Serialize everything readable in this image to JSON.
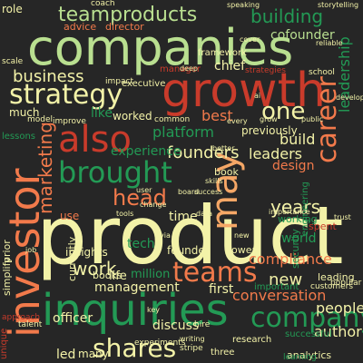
{
  "colors": {
    "background": "#262626",
    "light_green": "#b9df90",
    "pale_yellow": "#f3f2a8",
    "orange": "#f27a4b",
    "red": "#c93b2b",
    "green": "#239a55",
    "light_orange": "#f5a766",
    "gray": "#8c8c8c"
  },
  "words": [
    {
      "text": "product",
      "color": "pale_yellow",
      "vertical": false
    },
    {
      "text": "companies",
      "color": "light_green",
      "vertical": false
    },
    {
      "text": "growth",
      "color": "red",
      "vertical": false
    },
    {
      "text": "inquiries",
      "color": "green",
      "vertical": false
    },
    {
      "text": "investor",
      "color": "orange",
      "vertical": true
    },
    {
      "text": "teamproducts",
      "color": "light_green",
      "vertical": false
    },
    {
      "text": "also",
      "color": "red",
      "vertical": false
    },
    {
      "text": "may",
      "color": "light_orange",
      "vertical": true
    },
    {
      "text": "brought",
      "color": "green",
      "vertical": false
    },
    {
      "text": "strategy",
      "color": "pale_yellow",
      "vertical": false
    },
    {
      "text": "teams",
      "color": "orange",
      "vertical": false
    },
    {
      "text": "company",
      "color": "green",
      "vertical": false
    },
    {
      "text": "career",
      "color": "orange",
      "vertical": true
    },
    {
      "text": "shares",
      "color": "pale_yellow",
      "vertical": false
    },
    {
      "text": "head",
      "color": "orange",
      "vertical": false
    },
    {
      "text": "one",
      "color": "pale_yellow",
      "vertical": false
    },
    {
      "text": "building",
      "color": "green",
      "vertical": false
    },
    {
      "text": "business",
      "color": "pale_yellow",
      "vertical": false
    },
    {
      "text": "years",
      "color": "pale_yellow",
      "vertical": false
    },
    {
      "text": "work",
      "color": "pale_yellow",
      "vertical": false
    },
    {
      "text": "new",
      "color": "pale_yellow",
      "vertical": false
    },
    {
      "text": "marketing",
      "color": "orange",
      "vertical": true
    },
    {
      "text": "founders",
      "color": "pale_yellow",
      "vertical": false
    },
    {
      "text": "compliance",
      "color": "orange",
      "vertical": false
    },
    {
      "text": "conversation",
      "color": "orange",
      "vertical": false
    },
    {
      "text": "leaders",
      "color": "pale_yellow",
      "vertical": false
    },
    {
      "text": "management",
      "color": "pale_yellow",
      "vertical": false
    },
    {
      "text": "people",
      "color": "pale_yellow",
      "vertical": false
    },
    {
      "text": "leadership",
      "color": "green",
      "vertical": true
    },
    {
      "text": "author",
      "color": "pale_yellow",
      "vertical": false
    },
    {
      "text": "design",
      "color": "orange",
      "vertical": false
    },
    {
      "text": "build",
      "color": "pale_yellow",
      "vertical": false
    },
    {
      "text": "cofounder",
      "color": "light_green",
      "vertical": false
    },
    {
      "text": "platform",
      "color": "green",
      "vertical": false
    },
    {
      "text": "experience",
      "color": "green",
      "vertical": false
    },
    {
      "text": "best",
      "color": "orange",
      "vertical": false
    },
    {
      "text": "chief",
      "color": "pale_yellow",
      "vertical": false
    },
    {
      "text": "officer",
      "color": "pale_yellow",
      "vertical": false
    },
    {
      "text": "discuss",
      "color": "pale_yellow",
      "vertical": false
    },
    {
      "text": "time",
      "color": "pale_yellow",
      "vertical": false
    },
    {
      "text": "like",
      "color": "green",
      "vertical": false
    },
    {
      "text": "tech",
      "color": "green",
      "vertical": false
    },
    {
      "text": "insights",
      "color": "pale_yellow",
      "vertical": false
    },
    {
      "text": "first",
      "color": "pale_yellow",
      "vertical": false
    },
    {
      "text": "founder",
      "color": "pale_yellow",
      "vertical": false
    },
    {
      "text": "much",
      "color": "pale_yellow",
      "vertical": false
    },
    {
      "text": "previously",
      "color": "pale_yellow",
      "vertical": false
    },
    {
      "text": "working",
      "color": "green",
      "vertical": false
    },
    {
      "text": "led",
      "color": "pale_yellow",
      "vertical": false
    },
    {
      "text": "worked",
      "color": "pale_yellow",
      "vertical": false
    },
    {
      "text": "life",
      "color": "pale_yellow",
      "vertical": false
    },
    {
      "text": "million",
      "color": "green",
      "vertical": false
    },
    {
      "text": "use",
      "color": "orange",
      "vertical": false
    },
    {
      "text": "many",
      "color": "pale_yellow",
      "vertical": false
    },
    {
      "text": "book",
      "color": "pale_yellow",
      "vertical": false
    },
    {
      "text": "books",
      "color": "pale_yellow",
      "vertical": false
    },
    {
      "text": "power",
      "color": "pale_yellow",
      "vertical": false
    },
    {
      "text": "manager",
      "color": "red",
      "vertical": false
    },
    {
      "text": "leading",
      "color": "pale_yellow",
      "vertical": false
    },
    {
      "text": "currently",
      "color": "pale_yellow",
      "vertical": true
    },
    {
      "text": "important",
      "color": "green",
      "vertical": false
    },
    {
      "text": "security",
      "color": "green",
      "vertical": true
    },
    {
      "text": "engineering",
      "color": "green",
      "vertical": true
    },
    {
      "text": "executive",
      "color": "pale_yellow",
      "vertical": false
    },
    {
      "text": "advice",
      "color": "orange",
      "vertical": false
    },
    {
      "text": "director",
      "color": "orange",
      "vertical": false
    },
    {
      "text": "framework",
      "color": "pale_yellow",
      "vertical": false
    },
    {
      "text": "world",
      "color": "green",
      "vertical": false
    },
    {
      "text": "simplify",
      "color": "pale_yellow",
      "vertical": true
    },
    {
      "text": "prior",
      "color": "pale_yellow",
      "vertical": true
    },
    {
      "text": "analytics",
      "color": "pale_yellow",
      "vertical": false
    },
    {
      "text": "three",
      "color": "pale_yellow",
      "vertical": false
    },
    {
      "text": "research",
      "color": "pale_yellow",
      "vertical": false
    },
    {
      "text": "successful",
      "color": "green",
      "vertical": false
    },
    {
      "text": "customers",
      "color": "pale_yellow",
      "vertical": false
    },
    {
      "text": "stripe",
      "color": "pale_yellow",
      "vertical": false
    },
    {
      "text": "spent",
      "color": "red",
      "vertical": false
    },
    {
      "text": "strategies",
      "color": "red",
      "vertical": false
    },
    {
      "text": "common",
      "color": "pale_yellow",
      "vertical": false
    },
    {
      "text": "popular",
      "color": "pale_yellow",
      "vertical": false
    },
    {
      "text": "importance",
      "color": "pale_yellow",
      "vertical": false
    },
    {
      "text": "experiments",
      "color": "pale_yellow",
      "vertical": false
    },
    {
      "text": "learning",
      "color": "green",
      "vertical": false
    },
    {
      "text": "role",
      "color": "pale_yellow",
      "vertical": false
    },
    {
      "text": "coach",
      "color": "pale_yellow",
      "vertical": false
    },
    {
      "text": "scale",
      "color": "pale_yellow",
      "vertical": false
    },
    {
      "text": "model",
      "color": "pale_yellow",
      "vertical": false
    },
    {
      "text": "improve",
      "color": "pale_yellow",
      "vertical": false
    },
    {
      "text": "impact",
      "color": "pale_yellow",
      "vertical": false
    },
    {
      "text": "school",
      "color": "pale_yellow",
      "vertical": false
    },
    {
      "text": "lessons",
      "color": "green",
      "vertical": false
    },
    {
      "text": "unique",
      "color": "red",
      "vertical": true
    },
    {
      "text": "approach",
      "color": "red",
      "vertical": false
    },
    {
      "text": "talent",
      "color": "pale_yellow",
      "vertical": false
    },
    {
      "text": "storytelling",
      "color": "pale_yellow",
      "vertical": false
    },
    {
      "text": "speaking",
      "color": "pale_yellow",
      "vertical": false
    },
    {
      "text": "reliable",
      "color": "pale_yellow",
      "vertical": false
    },
    {
      "text": "develop",
      "color": "pale_yellow",
      "vertical": false
    },
    {
      "text": "public",
      "color": "pale_yellow",
      "vertical": false
    },
    {
      "text": "trust",
      "color": "pale_yellow",
      "vertical": false
    },
    {
      "text": "hire",
      "color": "pale_yellow",
      "vertical": false
    },
    {
      "text": "writing",
      "color": "pale_yellow",
      "vertical": false
    },
    {
      "text": "tools",
      "color": "pale_yellow",
      "vertical": false
    },
    {
      "text": "success",
      "color": "pale_yellow",
      "vertical": false
    },
    {
      "text": "board",
      "color": "pale_yellow",
      "vertical": false
    },
    {
      "text": "deep",
      "color": "pale_yellow",
      "vertical": false
    },
    {
      "text": "better",
      "color": "pale_yellow",
      "vertical": false
    },
    {
      "text": "every",
      "color": "pale_yellow",
      "vertical": false
    },
    {
      "text": "cover",
      "color": "pale_yellow",
      "vertical": false
    },
    {
      "text": "grow",
      "color": "pale_yellow",
      "vertical": false
    },
    {
      "text": "new",
      "color": "pale_yellow",
      "vertical": false
    },
    {
      "text": "skills",
      "color": "pale_yellow",
      "vertical": false
    },
    {
      "text": "change",
      "color": "pale_yellow",
      "vertical": false
    },
    {
      "text": "data",
      "color": "pale_yellow",
      "vertical": false
    },
    {
      "text": "user",
      "color": "pale_yellow",
      "vertical": false
    },
    {
      "text": "job",
      "color": "pale_yellow",
      "vertical": false
    },
    {
      "text": "key",
      "color": "pale_yellow",
      "vertical": false
    },
    {
      "text": "via",
      "color": "pale_yellow",
      "vertical": false
    },
    {
      "text": "ai",
      "color": "pale_yellow",
      "vertical": false
    }
  ]
}
